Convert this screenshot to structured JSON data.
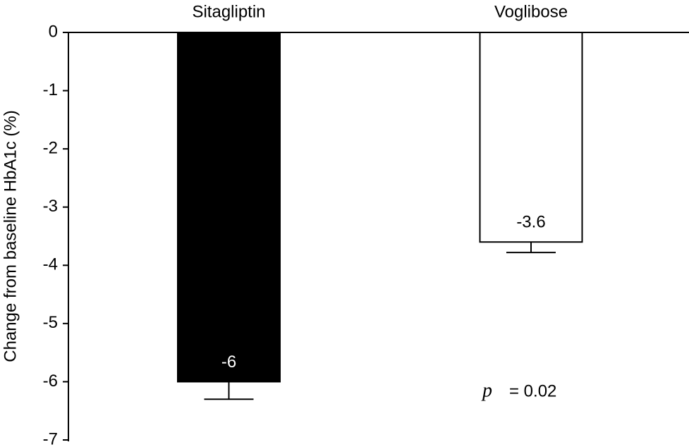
{
  "chart_data": {
    "type": "bar",
    "ylabel": "Change from baseline HbA1c (%)",
    "categories": [
      "Sitagliptin",
      "Voglibose"
    ],
    "values": [
      -6,
      -3.6
    ],
    "errors": [
      0.3,
      0.18
    ],
    "colors": [
      "#000000",
      "#ffffff"
    ],
    "edgecolor": "#000000",
    "ylim": [
      0,
      -7
    ],
    "yticks": [
      0,
      -1,
      -2,
      -3,
      -4,
      -5,
      -6,
      -7
    ],
    "annotation_symbol": "p",
    "annotation_text": "= 0.02"
  }
}
